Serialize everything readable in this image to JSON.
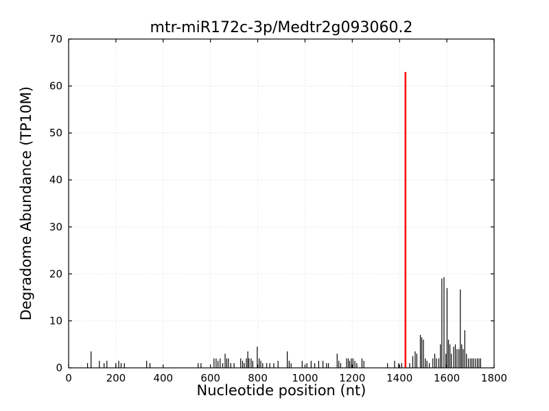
{
  "figure": {
    "background": "#ffffff"
  },
  "chart_data": {
    "type": "bar",
    "title": "mtr-miR172c-3p/Medtr2g093060.2",
    "xlabel": "Nucleotide position (nt)",
    "ylabel": "Degradome Abundance (TP10M)",
    "xlim": [
      0,
      1800
    ],
    "ylim": [
      0,
      70
    ],
    "x_ticks": [
      0,
      200,
      400,
      600,
      800,
      1000,
      1200,
      1400,
      1600,
      1800
    ],
    "y_ticks": [
      0,
      10,
      20,
      30,
      40,
      50,
      60,
      70
    ],
    "grid": true,
    "grid_color": "#cccccc",
    "axis_color": "#000000",
    "tick_label_color": "#000000",
    "legend": "none",
    "series": [
      {
        "name": "degradome-abundance",
        "color": "#000000",
        "line_width": 1.2,
        "points": [
          [
            80,
            1
          ],
          [
            95,
            3.5
          ],
          [
            130,
            1.5
          ],
          [
            150,
            1
          ],
          [
            162,
            1.5
          ],
          [
            200,
            1
          ],
          [
            212,
            1.5
          ],
          [
            222,
            1
          ],
          [
            236,
            1
          ],
          [
            330,
            1.5
          ],
          [
            344,
            1
          ],
          [
            548,
            1
          ],
          [
            560,
            1
          ],
          [
            615,
            2
          ],
          [
            624,
            2
          ],
          [
            632,
            1.5
          ],
          [
            641,
            2
          ],
          [
            652,
            1
          ],
          [
            662,
            3
          ],
          [
            669,
            2
          ],
          [
            676,
            2
          ],
          [
            686,
            1
          ],
          [
            700,
            1
          ],
          [
            728,
            2
          ],
          [
            736,
            1.5
          ],
          [
            743,
            1
          ],
          [
            752,
            2
          ],
          [
            758,
            3.5
          ],
          [
            763,
            2
          ],
          [
            772,
            2
          ],
          [
            779,
            1.5
          ],
          [
            798,
            4.5
          ],
          [
            806,
            2
          ],
          [
            813,
            1.5
          ],
          [
            821,
            1
          ],
          [
            838,
            1
          ],
          [
            851,
            1
          ],
          [
            868,
            1
          ],
          [
            886,
            1.5
          ],
          [
            925,
            3.5
          ],
          [
            933,
            1.5
          ],
          [
            941,
            1
          ],
          [
            988,
            1.5
          ],
          [
            1008,
            1
          ],
          [
            1026,
            1.5
          ],
          [
            1041,
            1
          ],
          [
            1058,
            1.5
          ],
          [
            1076,
            1.5
          ],
          [
            1091,
            1
          ],
          [
            1099,
            1
          ],
          [
            1136,
            3
          ],
          [
            1143,
            1.5
          ],
          [
            1151,
            1
          ],
          [
            1176,
            2
          ],
          [
            1183,
            2
          ],
          [
            1189,
            1.5
          ],
          [
            1196,
            2
          ],
          [
            1203,
            2
          ],
          [
            1211,
            1.5
          ],
          [
            1219,
            1
          ],
          [
            1241,
            2
          ],
          [
            1249,
            1.5
          ],
          [
            1349,
            1
          ],
          [
            1379,
            1.5
          ],
          [
            1396,
            1
          ],
          [
            1409,
            1
          ],
          [
            1443,
            1
          ],
          [
            1456,
            2.5
          ],
          [
            1466,
            3.5
          ],
          [
            1473,
            3
          ],
          [
            1488,
            7
          ],
          [
            1494,
            6.5
          ],
          [
            1501,
            6
          ],
          [
            1509,
            2
          ],
          [
            1516,
            1.5
          ],
          [
            1526,
            1
          ],
          [
            1541,
            2
          ],
          [
            1549,
            3
          ],
          [
            1556,
            2
          ],
          [
            1566,
            2
          ],
          [
            1573,
            5
          ],
          [
            1579,
            19
          ],
          [
            1588,
            19.3
          ],
          [
            1596,
            3
          ],
          [
            1601,
            17
          ],
          [
            1607,
            6
          ],
          [
            1613,
            5
          ],
          [
            1619,
            3
          ],
          [
            1629,
            4.5
          ],
          [
            1636,
            5
          ],
          [
            1643,
            4
          ],
          [
            1651,
            4
          ],
          [
            1657,
            16.7
          ],
          [
            1663,
            5
          ],
          [
            1669,
            4
          ],
          [
            1676,
            8
          ],
          [
            1683,
            3
          ],
          [
            1691,
            2
          ],
          [
            1699,
            2
          ],
          [
            1706,
            2
          ],
          [
            1713,
            2
          ],
          [
            1721,
            2
          ],
          [
            1729,
            2
          ],
          [
            1736,
            2
          ],
          [
            1743,
            2
          ]
        ]
      },
      {
        "name": "mirna-cleavage-site",
        "color": "#ff0000",
        "line_width": 2.5,
        "points": [
          [
            1425,
            63
          ]
        ]
      }
    ]
  }
}
